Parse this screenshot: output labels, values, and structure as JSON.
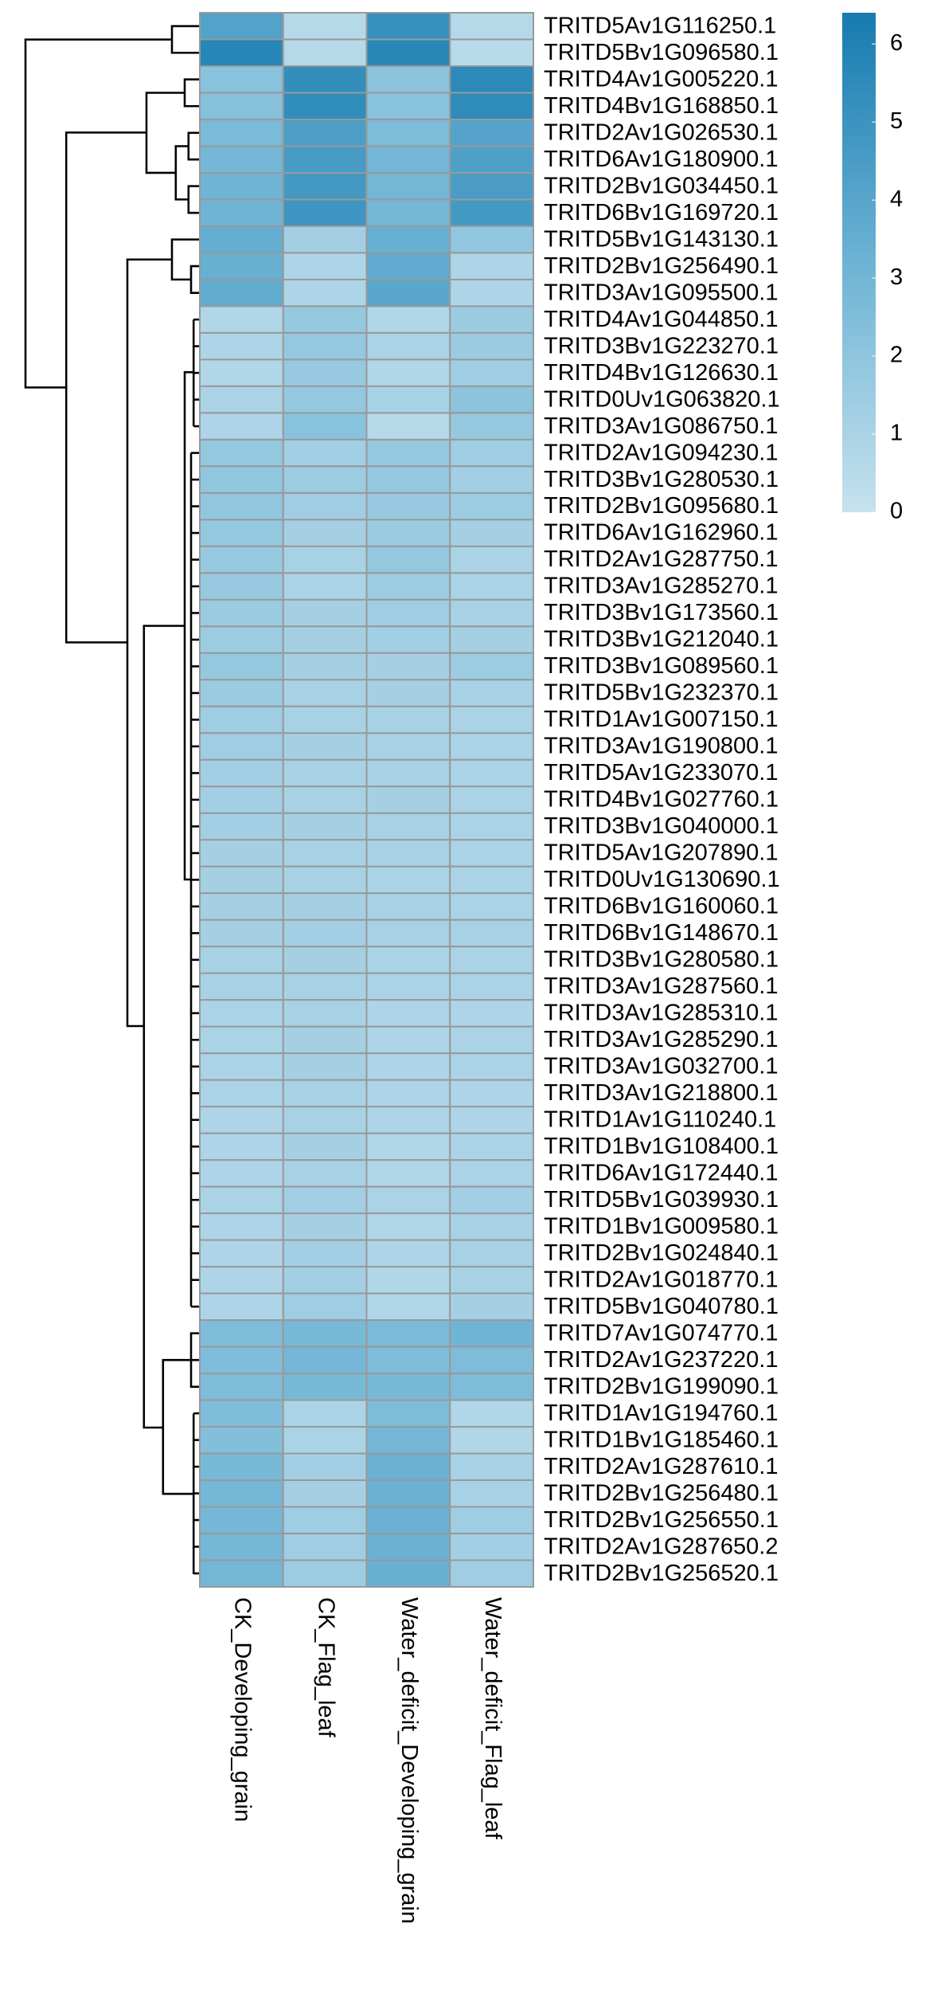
{
  "chart_data": {
    "type": "heatmap",
    "rows": [
      "TRITD5Av1G116250.1",
      "TRITD5Bv1G096580.1",
      "TRITD4Av1G005220.1",
      "TRITD4Bv1G168850.1",
      "TRITD2Av1G026530.1",
      "TRITD6Av1G180900.1",
      "TRITD2Bv1G034450.1",
      "TRITD6Bv1G169720.1",
      "TRITD5Bv1G143130.1",
      "TRITD2Bv1G256490.1",
      "TRITD3Av1G095500.1",
      "TRITD4Av1G044850.1",
      "TRITD3Bv1G223270.1",
      "TRITD4Bv1G126630.1",
      "TRITD0Uv1G063820.1",
      "TRITD3Av1G086750.1",
      "TRITD2Av1G094230.1",
      "TRITD3Bv1G280530.1",
      "TRITD2Bv1G095680.1",
      "TRITD6Av1G162960.1",
      "TRITD2Av1G287750.1",
      "TRITD3Av1G285270.1",
      "TRITD3Bv1G173560.1",
      "TRITD3Bv1G212040.1",
      "TRITD3Bv1G089560.1",
      "TRITD5Bv1G232370.1",
      "TRITD1Av1G007150.1",
      "TRITD3Av1G190800.1",
      "TRITD5Av1G233070.1",
      "TRITD4Bv1G027760.1",
      "TRITD3Bv1G040000.1",
      "TRITD5Av1G207890.1",
      "TRITD0Uv1G130690.1",
      "TRITD6Bv1G160060.1",
      "TRITD6Bv1G148670.1",
      "TRITD3Bv1G280580.1",
      "TRITD3Av1G287560.1",
      "TRITD3Av1G285310.1",
      "TRITD3Av1G285290.1",
      "TRITD3Av1G032700.1",
      "TRITD3Av1G218800.1",
      "TRITD1Av1G110240.1",
      "TRITD1Bv1G108400.1",
      "TRITD6Av1G172440.1",
      "TRITD5Bv1G039930.1",
      "TRITD1Bv1G009580.1",
      "TRITD2Bv1G024840.1",
      "TRITD2Av1G018770.1",
      "TRITD5Bv1G040780.1",
      "TRITD7Av1G074770.1",
      "TRITD2Av1G237220.1",
      "TRITD2Bv1G199090.1",
      "TRITD1Av1G194760.1",
      "TRITD1Bv1G185460.1",
      "TRITD2Av1G287610.1",
      "TRITD2Bv1G256480.1",
      "TRITD2Bv1G256550.1",
      "TRITD2Av1G287650.2",
      "TRITD2Bv1G256520.1"
    ],
    "columns": [
      "CK_Developing_grain",
      "CK_Flag_leaf",
      "Water_deficit_Developing_grain",
      "Water_deficit_Flag_leaf"
    ],
    "values": [
      [
        4.2,
        0.6,
        5.2,
        0.6
      ],
      [
        5.8,
        0.6,
        5.7,
        0.5
      ],
      [
        2.2,
        5.3,
        2.1,
        5.6
      ],
      [
        2.3,
        5.4,
        2.2,
        5.5
      ],
      [
        2.7,
        4.4,
        2.6,
        4.1
      ],
      [
        2.9,
        4.6,
        3.0,
        4.3
      ],
      [
        3.1,
        4.7,
        3.0,
        4.5
      ],
      [
        3.1,
        4.9,
        2.9,
        4.7
      ],
      [
        3.5,
        1.3,
        3.4,
        1.9
      ],
      [
        3.4,
        0.9,
        3.7,
        0.9
      ],
      [
        3.6,
        0.9,
        3.9,
        0.9
      ],
      [
        0.8,
        1.8,
        0.8,
        1.6
      ],
      [
        0.9,
        1.8,
        1.0,
        1.6
      ],
      [
        0.8,
        1.7,
        0.8,
        1.4
      ],
      [
        1.0,
        1.8,
        1.1,
        2.1
      ],
      [
        0.9,
        2.2,
        0.6,
        1.8
      ],
      [
        1.8,
        1.3,
        1.8,
        1.4
      ],
      [
        1.9,
        1.5,
        1.8,
        1.3
      ],
      [
        1.9,
        1.4,
        1.7,
        1.5
      ],
      [
        1.8,
        1.2,
        1.6,
        1.2
      ],
      [
        1.7,
        1.1,
        1.8,
        1.0
      ],
      [
        1.7,
        1.0,
        1.5,
        1.0
      ],
      [
        1.6,
        1.2,
        1.4,
        1.1
      ],
      [
        1.5,
        1.2,
        1.3,
        1.2
      ],
      [
        1.8,
        1.2,
        1.2,
        1.5
      ],
      [
        1.6,
        1.1,
        1.2,
        1.1
      ],
      [
        1.4,
        1.1,
        1.1,
        1.0
      ],
      [
        1.4,
        1.2,
        1.1,
        1.0
      ],
      [
        1.3,
        1.1,
        1.1,
        1.0
      ],
      [
        1.3,
        1.1,
        1.2,
        1.0
      ],
      [
        1.3,
        1.2,
        1.1,
        1.0
      ],
      [
        1.2,
        1.1,
        1.1,
        1.0
      ],
      [
        1.2,
        1.1,
        1.0,
        1.0
      ],
      [
        1.2,
        1.2,
        1.1,
        1.0
      ],
      [
        1.2,
        1.3,
        1.1,
        1.1
      ],
      [
        1.1,
        1.2,
        1.0,
        1.0
      ],
      [
        1.1,
        1.1,
        1.0,
        1.0
      ],
      [
        1.0,
        1.1,
        0.9,
        0.9
      ],
      [
        1.0,
        1.2,
        0.9,
        1.0
      ],
      [
        1.0,
        1.2,
        0.9,
        1.0
      ],
      [
        1.0,
        1.1,
        0.9,
        0.9
      ],
      [
        0.9,
        1.1,
        0.9,
        0.9
      ],
      [
        0.9,
        1.2,
        0.8,
        1.0
      ],
      [
        0.9,
        1.1,
        0.8,
        1.0
      ],
      [
        1.0,
        1.3,
        1.0,
        1.3
      ],
      [
        0.9,
        1.2,
        0.8,
        1.1
      ],
      [
        0.9,
        1.3,
        0.9,
        1.1
      ],
      [
        0.9,
        1.3,
        0.8,
        1.1
      ],
      [
        0.9,
        1.4,
        0.8,
        1.2
      ],
      [
        2.6,
        2.8,
        2.7,
        3.1
      ],
      [
        2.5,
        2.9,
        2.5,
        2.6
      ],
      [
        2.6,
        2.8,
        2.8,
        2.6
      ],
      [
        2.5,
        1.0,
        2.6,
        0.8
      ],
      [
        2.4,
        1.0,
        3.0,
        0.8
      ],
      [
        2.8,
        1.3,
        3.3,
        1.1
      ],
      [
        2.9,
        1.2,
        3.3,
        1.1
      ],
      [
        2.9,
        1.4,
        3.3,
        1.4
      ],
      [
        2.9,
        1.4,
        3.3,
        1.3
      ],
      [
        3.0,
        1.5,
        3.4,
        1.4
      ]
    ],
    "colors": [
      "#c6e2ee",
      "#6db3d4",
      "#167bb0"
    ],
    "ylim": [
      0,
      6.4
    ],
    "yticks": [
      0,
      1,
      2,
      3,
      4,
      5,
      6
    ]
  }
}
